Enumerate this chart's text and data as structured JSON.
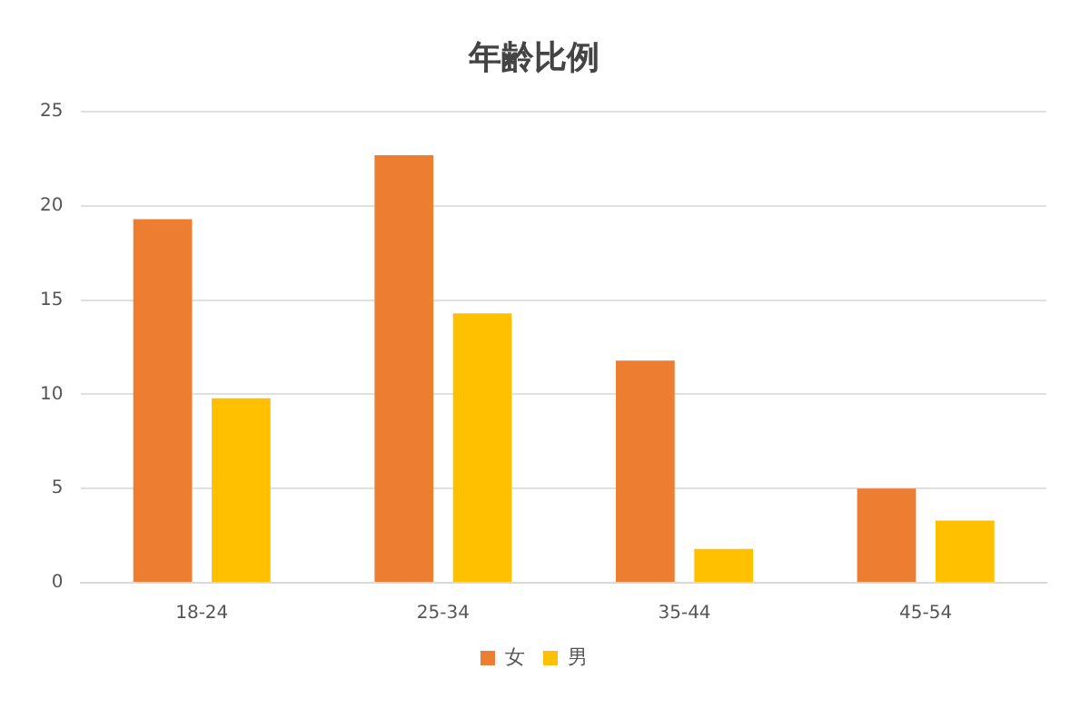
{
  "chart_data": {
    "type": "bar",
    "title": "年齢比例",
    "categories": [
      "18-24",
      "25-34",
      "35-44",
      "45-54"
    ],
    "series": [
      {
        "name": "女",
        "color": "#ed7d31",
        "values": [
          19.3,
          22.7,
          11.8,
          5.0
        ]
      },
      {
        "name": "男",
        "color": "#ffc000",
        "values": [
          9.8,
          14.3,
          1.8,
          3.3
        ]
      }
    ],
    "ylim": [
      0,
      25
    ],
    "yticks": [
      0,
      5,
      10,
      15,
      20,
      25
    ],
    "grid": "y",
    "legend": "bottom"
  }
}
